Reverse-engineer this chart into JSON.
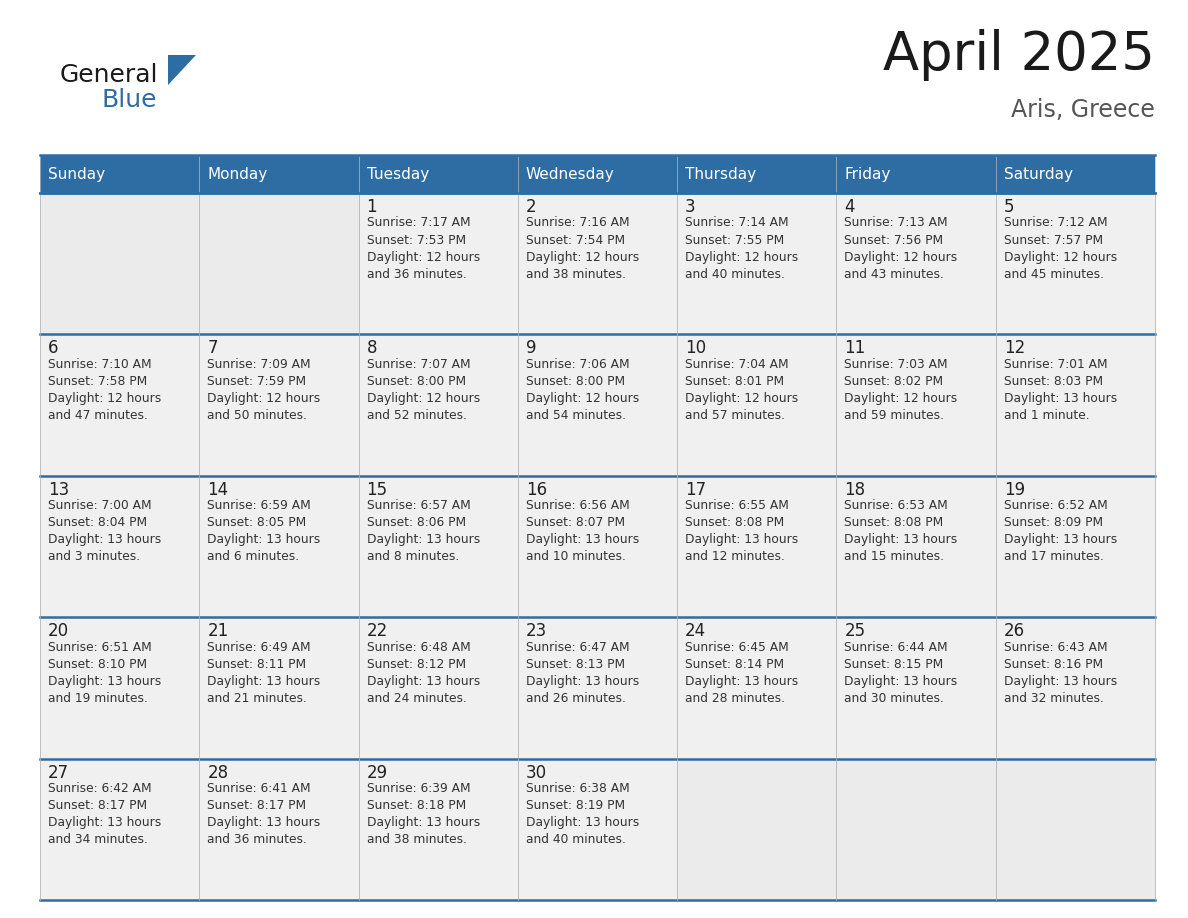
{
  "title": "April 2025",
  "subtitle": "Aris, Greece",
  "header_bg": "#2e6da4",
  "header_text_color": "#ffffff",
  "cell_bg": "#eeeeee",
  "cell_bg_white": "#ffffff",
  "border_color": "#2e6da4",
  "grid_color": "#bbbbbb",
  "text_color": "#333333",
  "day_num_color": "#222222",
  "days_of_week": [
    "Sunday",
    "Monday",
    "Tuesday",
    "Wednesday",
    "Thursday",
    "Friday",
    "Saturday"
  ],
  "calendar": [
    [
      {
        "day": "",
        "lines": []
      },
      {
        "day": "",
        "lines": []
      },
      {
        "day": "1",
        "lines": [
          "Sunrise: 7:17 AM",
          "Sunset: 7:53 PM",
          "Daylight: 12 hours",
          "and 36 minutes."
        ]
      },
      {
        "day": "2",
        "lines": [
          "Sunrise: 7:16 AM",
          "Sunset: 7:54 PM",
          "Daylight: 12 hours",
          "and 38 minutes."
        ]
      },
      {
        "day": "3",
        "lines": [
          "Sunrise: 7:14 AM",
          "Sunset: 7:55 PM",
          "Daylight: 12 hours",
          "and 40 minutes."
        ]
      },
      {
        "day": "4",
        "lines": [
          "Sunrise: 7:13 AM",
          "Sunset: 7:56 PM",
          "Daylight: 12 hours",
          "and 43 minutes."
        ]
      },
      {
        "day": "5",
        "lines": [
          "Sunrise: 7:12 AM",
          "Sunset: 7:57 PM",
          "Daylight: 12 hours",
          "and 45 minutes."
        ]
      }
    ],
    [
      {
        "day": "6",
        "lines": [
          "Sunrise: 7:10 AM",
          "Sunset: 7:58 PM",
          "Daylight: 12 hours",
          "and 47 minutes."
        ]
      },
      {
        "day": "7",
        "lines": [
          "Sunrise: 7:09 AM",
          "Sunset: 7:59 PM",
          "Daylight: 12 hours",
          "and 50 minutes."
        ]
      },
      {
        "day": "8",
        "lines": [
          "Sunrise: 7:07 AM",
          "Sunset: 8:00 PM",
          "Daylight: 12 hours",
          "and 52 minutes."
        ]
      },
      {
        "day": "9",
        "lines": [
          "Sunrise: 7:06 AM",
          "Sunset: 8:00 PM",
          "Daylight: 12 hours",
          "and 54 minutes."
        ]
      },
      {
        "day": "10",
        "lines": [
          "Sunrise: 7:04 AM",
          "Sunset: 8:01 PM",
          "Daylight: 12 hours",
          "and 57 minutes."
        ]
      },
      {
        "day": "11",
        "lines": [
          "Sunrise: 7:03 AM",
          "Sunset: 8:02 PM",
          "Daylight: 12 hours",
          "and 59 minutes."
        ]
      },
      {
        "day": "12",
        "lines": [
          "Sunrise: 7:01 AM",
          "Sunset: 8:03 PM",
          "Daylight: 13 hours",
          "and 1 minute."
        ]
      }
    ],
    [
      {
        "day": "13",
        "lines": [
          "Sunrise: 7:00 AM",
          "Sunset: 8:04 PM",
          "Daylight: 13 hours",
          "and 3 minutes."
        ]
      },
      {
        "day": "14",
        "lines": [
          "Sunrise: 6:59 AM",
          "Sunset: 8:05 PM",
          "Daylight: 13 hours",
          "and 6 minutes."
        ]
      },
      {
        "day": "15",
        "lines": [
          "Sunrise: 6:57 AM",
          "Sunset: 8:06 PM",
          "Daylight: 13 hours",
          "and 8 minutes."
        ]
      },
      {
        "day": "16",
        "lines": [
          "Sunrise: 6:56 AM",
          "Sunset: 8:07 PM",
          "Daylight: 13 hours",
          "and 10 minutes."
        ]
      },
      {
        "day": "17",
        "lines": [
          "Sunrise: 6:55 AM",
          "Sunset: 8:08 PM",
          "Daylight: 13 hours",
          "and 12 minutes."
        ]
      },
      {
        "day": "18",
        "lines": [
          "Sunrise: 6:53 AM",
          "Sunset: 8:08 PM",
          "Daylight: 13 hours",
          "and 15 minutes."
        ]
      },
      {
        "day": "19",
        "lines": [
          "Sunrise: 6:52 AM",
          "Sunset: 8:09 PM",
          "Daylight: 13 hours",
          "and 17 minutes."
        ]
      }
    ],
    [
      {
        "day": "20",
        "lines": [
          "Sunrise: 6:51 AM",
          "Sunset: 8:10 PM",
          "Daylight: 13 hours",
          "and 19 minutes."
        ]
      },
      {
        "day": "21",
        "lines": [
          "Sunrise: 6:49 AM",
          "Sunset: 8:11 PM",
          "Daylight: 13 hours",
          "and 21 minutes."
        ]
      },
      {
        "day": "22",
        "lines": [
          "Sunrise: 6:48 AM",
          "Sunset: 8:12 PM",
          "Daylight: 13 hours",
          "and 24 minutes."
        ]
      },
      {
        "day": "23",
        "lines": [
          "Sunrise: 6:47 AM",
          "Sunset: 8:13 PM",
          "Daylight: 13 hours",
          "and 26 minutes."
        ]
      },
      {
        "day": "24",
        "lines": [
          "Sunrise: 6:45 AM",
          "Sunset: 8:14 PM",
          "Daylight: 13 hours",
          "and 28 minutes."
        ]
      },
      {
        "day": "25",
        "lines": [
          "Sunrise: 6:44 AM",
          "Sunset: 8:15 PM",
          "Daylight: 13 hours",
          "and 30 minutes."
        ]
      },
      {
        "day": "26",
        "lines": [
          "Sunrise: 6:43 AM",
          "Sunset: 8:16 PM",
          "Daylight: 13 hours",
          "and 32 minutes."
        ]
      }
    ],
    [
      {
        "day": "27",
        "lines": [
          "Sunrise: 6:42 AM",
          "Sunset: 8:17 PM",
          "Daylight: 13 hours",
          "and 34 minutes."
        ]
      },
      {
        "day": "28",
        "lines": [
          "Sunrise: 6:41 AM",
          "Sunset: 8:17 PM",
          "Daylight: 13 hours",
          "and 36 minutes."
        ]
      },
      {
        "day": "29",
        "lines": [
          "Sunrise: 6:39 AM",
          "Sunset: 8:18 PM",
          "Daylight: 13 hours",
          "and 38 minutes."
        ]
      },
      {
        "day": "30",
        "lines": [
          "Sunrise: 6:38 AM",
          "Sunset: 8:19 PM",
          "Daylight: 13 hours",
          "and 40 minutes."
        ]
      },
      {
        "day": "",
        "lines": []
      },
      {
        "day": "",
        "lines": []
      },
      {
        "day": "",
        "lines": []
      }
    ]
  ],
  "logo_general_color": "#1a1a1a",
  "logo_blue_color": "#2e6da4",
  "logo_triangle_color": "#2e6da4",
  "title_color": "#1a1a1a",
  "subtitle_color": "#555555"
}
